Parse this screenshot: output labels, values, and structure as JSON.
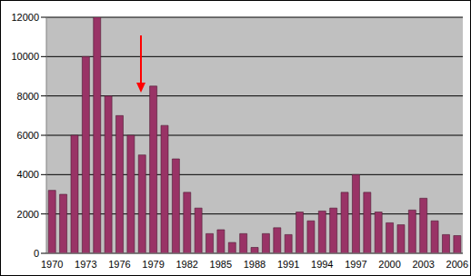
{
  "chart_data": {
    "type": "bar",
    "categories": [
      "1970",
      null,
      null,
      "1973",
      null,
      null,
      "1976",
      null,
      null,
      "1979",
      null,
      null,
      "1982",
      null,
      null,
      "1985",
      null,
      null,
      "1988",
      null,
      null,
      "1991",
      null,
      null,
      "1994",
      null,
      null,
      "1997",
      null,
      null,
      "2000",
      null,
      null,
      "2003",
      null,
      null,
      "2006"
    ],
    "values": [
      3200,
      3000,
      6000,
      10000,
      12000,
      8000,
      7000,
      6000,
      5000,
      8500,
      6500,
      4800,
      3100,
      2300,
      1000,
      1200,
      550,
      1000,
      300,
      1000,
      1300,
      950,
      2100,
      1650,
      2150,
      2300,
      3100,
      4000,
      3100,
      2100,
      1550,
      1450,
      2200,
      2800,
      1650,
      950,
      900
    ],
    "color": "#993366",
    "ylim": [
      0,
      12000
    ],
    "yticks": [
      0,
      2000,
      4000,
      6000,
      8000,
      10000,
      12000
    ],
    "grid": true
  }
}
